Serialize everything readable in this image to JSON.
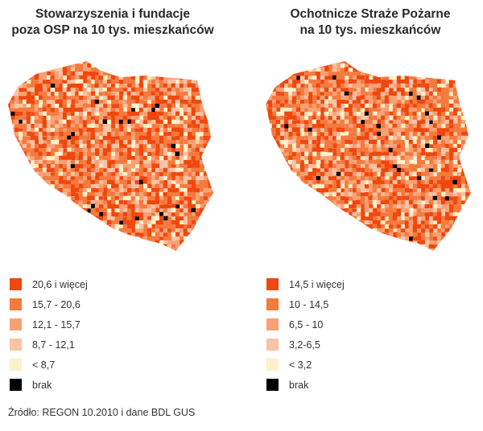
{
  "maps": [
    {
      "title_line1": "Stowarzyszenia i fundacje",
      "title_line2": "poza OSP na 10 tys. mieszkańców",
      "legend": [
        {
          "label": "20,6 i więcej",
          "color": "#f0470f"
        },
        {
          "label": "15,7 - 20,6",
          "color": "#f47a3e"
        },
        {
          "label": "12,1 - 15,7",
          "color": "#f7a176"
        },
        {
          "label": "8,7 - 12,1",
          "color": "#f9c3a5"
        },
        {
          "label": "< 8,7",
          "color": "#fdf1cb"
        },
        {
          "label": "brak",
          "color": "#000000"
        }
      ]
    },
    {
      "title_line1": "Ochotnicze Straże Pożarne",
      "title_line2": "na 10 tys. mieszkańców",
      "legend": [
        {
          "label": "14,5 i więcej",
          "color": "#f0470f"
        },
        {
          "label": "10 - 14,5",
          "color": "#f47a3e"
        },
        {
          "label": "6,5 - 10",
          "color": "#f7a176"
        },
        {
          "label": "3,2-6,5",
          "color": "#f9c3a5"
        },
        {
          "label": "< 3,2",
          "color": "#fdf1cb"
        },
        {
          "label": "brak",
          "color": "#000000"
        }
      ]
    }
  ],
  "source": "Źródło: REGON 10.2010 i dane BDL GUS"
}
